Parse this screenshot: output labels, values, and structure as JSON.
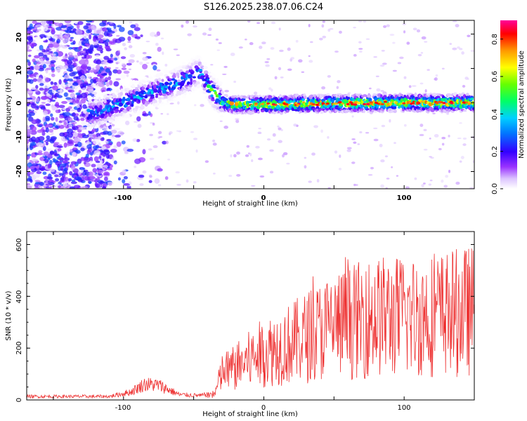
{
  "title": "S126.2025.238.07.06.C24",
  "chart_data": [
    {
      "type": "heatmap",
      "name": "spectrogram",
      "xlabel": "Height of straight line (km)",
      "ylabel": "Frequency (Hz)",
      "xlim": [
        -169,
        150
      ],
      "ylim": [
        -25,
        24
      ],
      "x_ticks": [
        "-100",
        "0",
        "100"
      ],
      "y_ticks": [
        "20",
        "10",
        "0",
        "-10",
        "-20"
      ],
      "colorbar": {
        "label": "Normalized spectral amplitude",
        "range": [
          0,
          0.9
        ],
        "ticks": [
          "0.0",
          "0.2",
          "0.4",
          "0.6",
          "0.8"
        ]
      },
      "ridge": {
        "x": [
          -120,
          -100,
          -80,
          -60,
          -46,
          -36,
          -28,
          -20,
          0,
          50,
          100,
          150
        ],
        "freq_hz": [
          -3,
          0,
          3,
          6,
          9,
          3,
          0,
          -0.5,
          -0.5,
          -0.2,
          0,
          0
        ]
      }
    },
    {
      "type": "line",
      "name": "snr",
      "xlabel": "Height of straight line (km)",
      "ylabel": "SNR (10 * v/v)",
      "xlim": [
        -169,
        150
      ],
      "ylim": [
        0,
        650
      ],
      "x_ticks": [
        "-100",
        "0",
        "100"
      ],
      "y_ticks": [
        "600",
        "400",
        "200",
        "0"
      ],
      "color": "#ee3333",
      "envelope": {
        "x": [
          -169,
          -110,
          -95,
          -85,
          -75,
          -60,
          -45,
          -35,
          -30,
          -20,
          0,
          20,
          50,
          80,
          110,
          150
        ],
        "max": [
          20,
          20,
          45,
          90,
          85,
          30,
          25,
          40,
          180,
          220,
          320,
          380,
          500,
          560,
          560,
          600
        ]
      }
    }
  ]
}
